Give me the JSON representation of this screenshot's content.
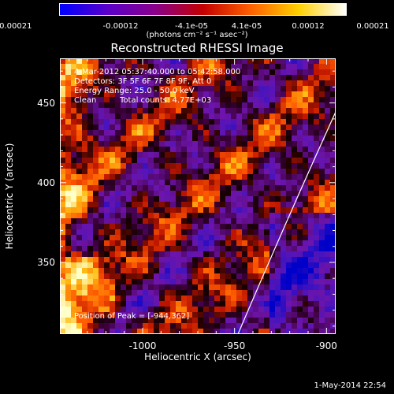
{
  "chart_data": {
    "type": "heatmap",
    "title": "Reconstructed RHESSI Image",
    "xlabel": "Heliocentric X (arcsec)",
    "ylabel": "Heliocentric Y (arcsec)",
    "xlim": [
      -1045,
      -895
    ],
    "ylim": [
      305,
      478
    ],
    "x_ticks": [
      -1000,
      -950,
      -900
    ],
    "y_ticks": [
      350,
      400,
      450
    ],
    "colorbar": {
      "ticks": [
        "-0.00021",
        "-0.00012",
        "-4.1e-05",
        "4.1e-05",
        "0.00012",
        "0.00021"
      ],
      "units": "(photons cm⁻² s⁻¹ asec⁻²)",
      "range": [
        -0.00021,
        0.00021
      ],
      "colors": [
        "#0000ff",
        "#5a00c8",
        "#8a008a",
        "#c40000",
        "#ff6000",
        "#ffd000",
        "#ffffff"
      ]
    },
    "annotations": {
      "time_range": "4-Mar-2012 05:37:40.000 to 05:42:58.000",
      "detectors": "Detectors: 3F 5F 6F 7F 8F 9F, Att 0",
      "energy": "Energy Range: 25.0 - 50.0 keV",
      "method": "Clean",
      "counts": "Total counts: 4.77E+03",
      "peak": "Position of Peak = [-944,362]"
    },
    "limb_color": "#ffffff"
  },
  "footer": {
    "date": "1-May-2014 22:54"
  }
}
